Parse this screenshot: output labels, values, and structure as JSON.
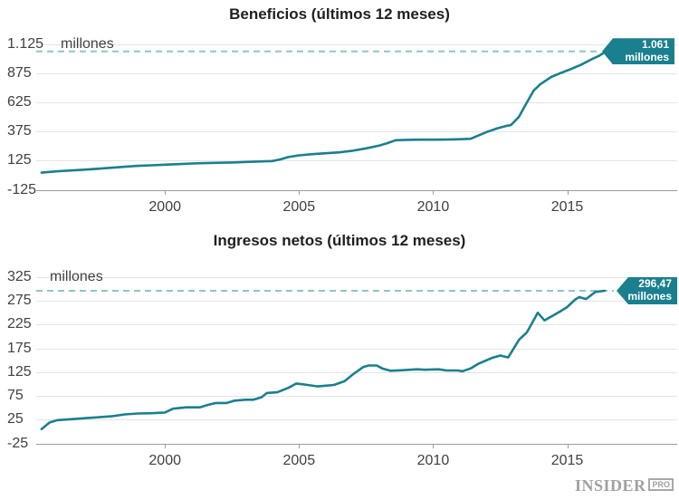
{
  "page": {
    "background": "#ffffff"
  },
  "colors": {
    "line": "#1a7f8e",
    "badge_bg": "#1a7f8e",
    "badge_text": "#ffffff",
    "reference_dash": "#8fc3cd",
    "gridline": "#e3e3e3",
    "axis": "#9b9b9b",
    "tick_text": "#404040",
    "title_text": "#1f1f1f",
    "logo_gray": "#a0a0a0"
  },
  "chart_data": [
    {
      "type": "line",
      "title": "Beneficios (últimos 12 meses)",
      "unit_label": "millones",
      "xlabel": "",
      "ylabel": "millones",
      "grid": "horizontal",
      "legend": "none",
      "ylim": [
        -125,
        1125
      ],
      "xlim": [
        1995.2,
        2019.1
      ],
      "y_ticks": [
        1125,
        875,
        625,
        375,
        125,
        -125
      ],
      "y_tick_labels": [
        "1.125",
        "875",
        "625",
        "375",
        "125",
        "-125"
      ],
      "x_ticks": [
        2000,
        2005,
        2010,
        2015
      ],
      "x_tick_labels": [
        "2000",
        "2005",
        "2010",
        "2015"
      ],
      "reference_line": {
        "style": "dashed",
        "value": 1061
      },
      "annotation": {
        "label_line1": "1.061",
        "label_line2": "millones",
        "value": 1061
      },
      "series": [
        {
          "name": "Beneficios (últimos 12 meses)",
          "x": [
            1995.4,
            1996,
            1996.5,
            1997,
            1997.5,
            1998,
            1998.5,
            1999,
            1999.5,
            2000,
            2000.5,
            2001,
            2001.5,
            2002,
            2002.5,
            2003,
            2003.5,
            2004,
            2004.3,
            2004.6,
            2005,
            2005.5,
            2006,
            2006.5,
            2007,
            2007.5,
            2008,
            2008.3,
            2008.6,
            2009,
            2009.5,
            2010,
            2010.5,
            2011,
            2011.4,
            2012,
            2012.4,
            2012.7,
            2012.9,
            2013.2,
            2013.4,
            2013.75,
            2014,
            2014.4,
            2014.8,
            2015.1,
            2015.5,
            2015.9,
            2016.2,
            2016.45
          ],
          "y": [
            22,
            33,
            40,
            47,
            55,
            64,
            72,
            80,
            85,
            90,
            95,
            100,
            103,
            106,
            109,
            113,
            117,
            121,
            135,
            155,
            170,
            180,
            188,
            196,
            210,
            230,
            255,
            275,
            300,
            303,
            304,
            304,
            305,
            308,
            312,
            370,
            402,
            421,
            429,
            500,
            584,
            726,
            780,
            842,
            880,
            906,
            945,
            992,
            1025,
            1061
          ]
        }
      ]
    },
    {
      "type": "line",
      "title": "Ingresos netos (últimos 12 meses)",
      "unit_label": "millones",
      "xlabel": "",
      "ylabel": "millones",
      "grid": "horizontal",
      "legend": "none",
      "ylim": [
        -25,
        325
      ],
      "xlim": [
        1995.2,
        2019.1
      ],
      "y_ticks": [
        325,
        275,
        225,
        175,
        125,
        75,
        25,
        -25
      ],
      "y_tick_labels": [
        "325",
        "275",
        "225",
        "175",
        "125",
        "75",
        "25",
        "-25"
      ],
      "x_ticks": [
        2000,
        2005,
        2010,
        2015
      ],
      "x_tick_labels": [
        "2000",
        "2005",
        "2010",
        "2015"
      ],
      "reference_line": {
        "style": "dashed",
        "value": 296.47
      },
      "annotation": {
        "label_line1": "296,47",
        "label_line2": "millones",
        "value": 296.47
      },
      "series": [
        {
          "name": "Ingresos netos (últimos 12 meses)",
          "x": [
            1995.4,
            1995.7,
            1996,
            1996.5,
            1997,
            1997.5,
            1998,
            1998.5,
            1999,
            1999.5,
            2000,
            2000.3,
            2000.8,
            2001.3,
            2001.6,
            2001.9,
            2002.3,
            2002.6,
            2003,
            2003.3,
            2003.6,
            2003.8,
            2004.2,
            2004.6,
            2004.9,
            2005.2,
            2005.7,
            2006.3,
            2006.7,
            2007,
            2007.4,
            2007.6,
            2007.9,
            2008.1,
            2008.4,
            2008.8,
            2009.4,
            2009.7,
            2010.2,
            2010.5,
            2010.9,
            2011.1,
            2011.4,
            2011.7,
            2012.2,
            2012.5,
            2012.8,
            2013.2,
            2013.5,
            2013.9,
            2014.15,
            2014.5,
            2014.8,
            2015,
            2015.3,
            2015.45,
            2015.7,
            2016.05,
            2016.4
          ],
          "y": [
            5,
            19,
            24,
            26,
            28,
            30,
            32,
            36,
            38,
            38.5,
            40,
            48,
            51,
            51,
            56,
            60,
            60,
            65,
            67,
            67,
            72,
            81,
            83,
            92,
            101,
            99,
            95,
            98,
            106,
            120,
            136,
            139,
            139,
            133,
            128,
            129,
            131,
            130,
            131,
            128.5,
            128.5,
            127,
            133,
            143,
            155,
            160,
            156,
            193,
            209,
            250,
            234,
            245,
            255,
            262,
            278,
            283,
            279,
            294,
            296.47
          ]
        }
      ]
    }
  ],
  "footer": {
    "brand": "INSIDER",
    "brand_suffix": "PRO"
  }
}
